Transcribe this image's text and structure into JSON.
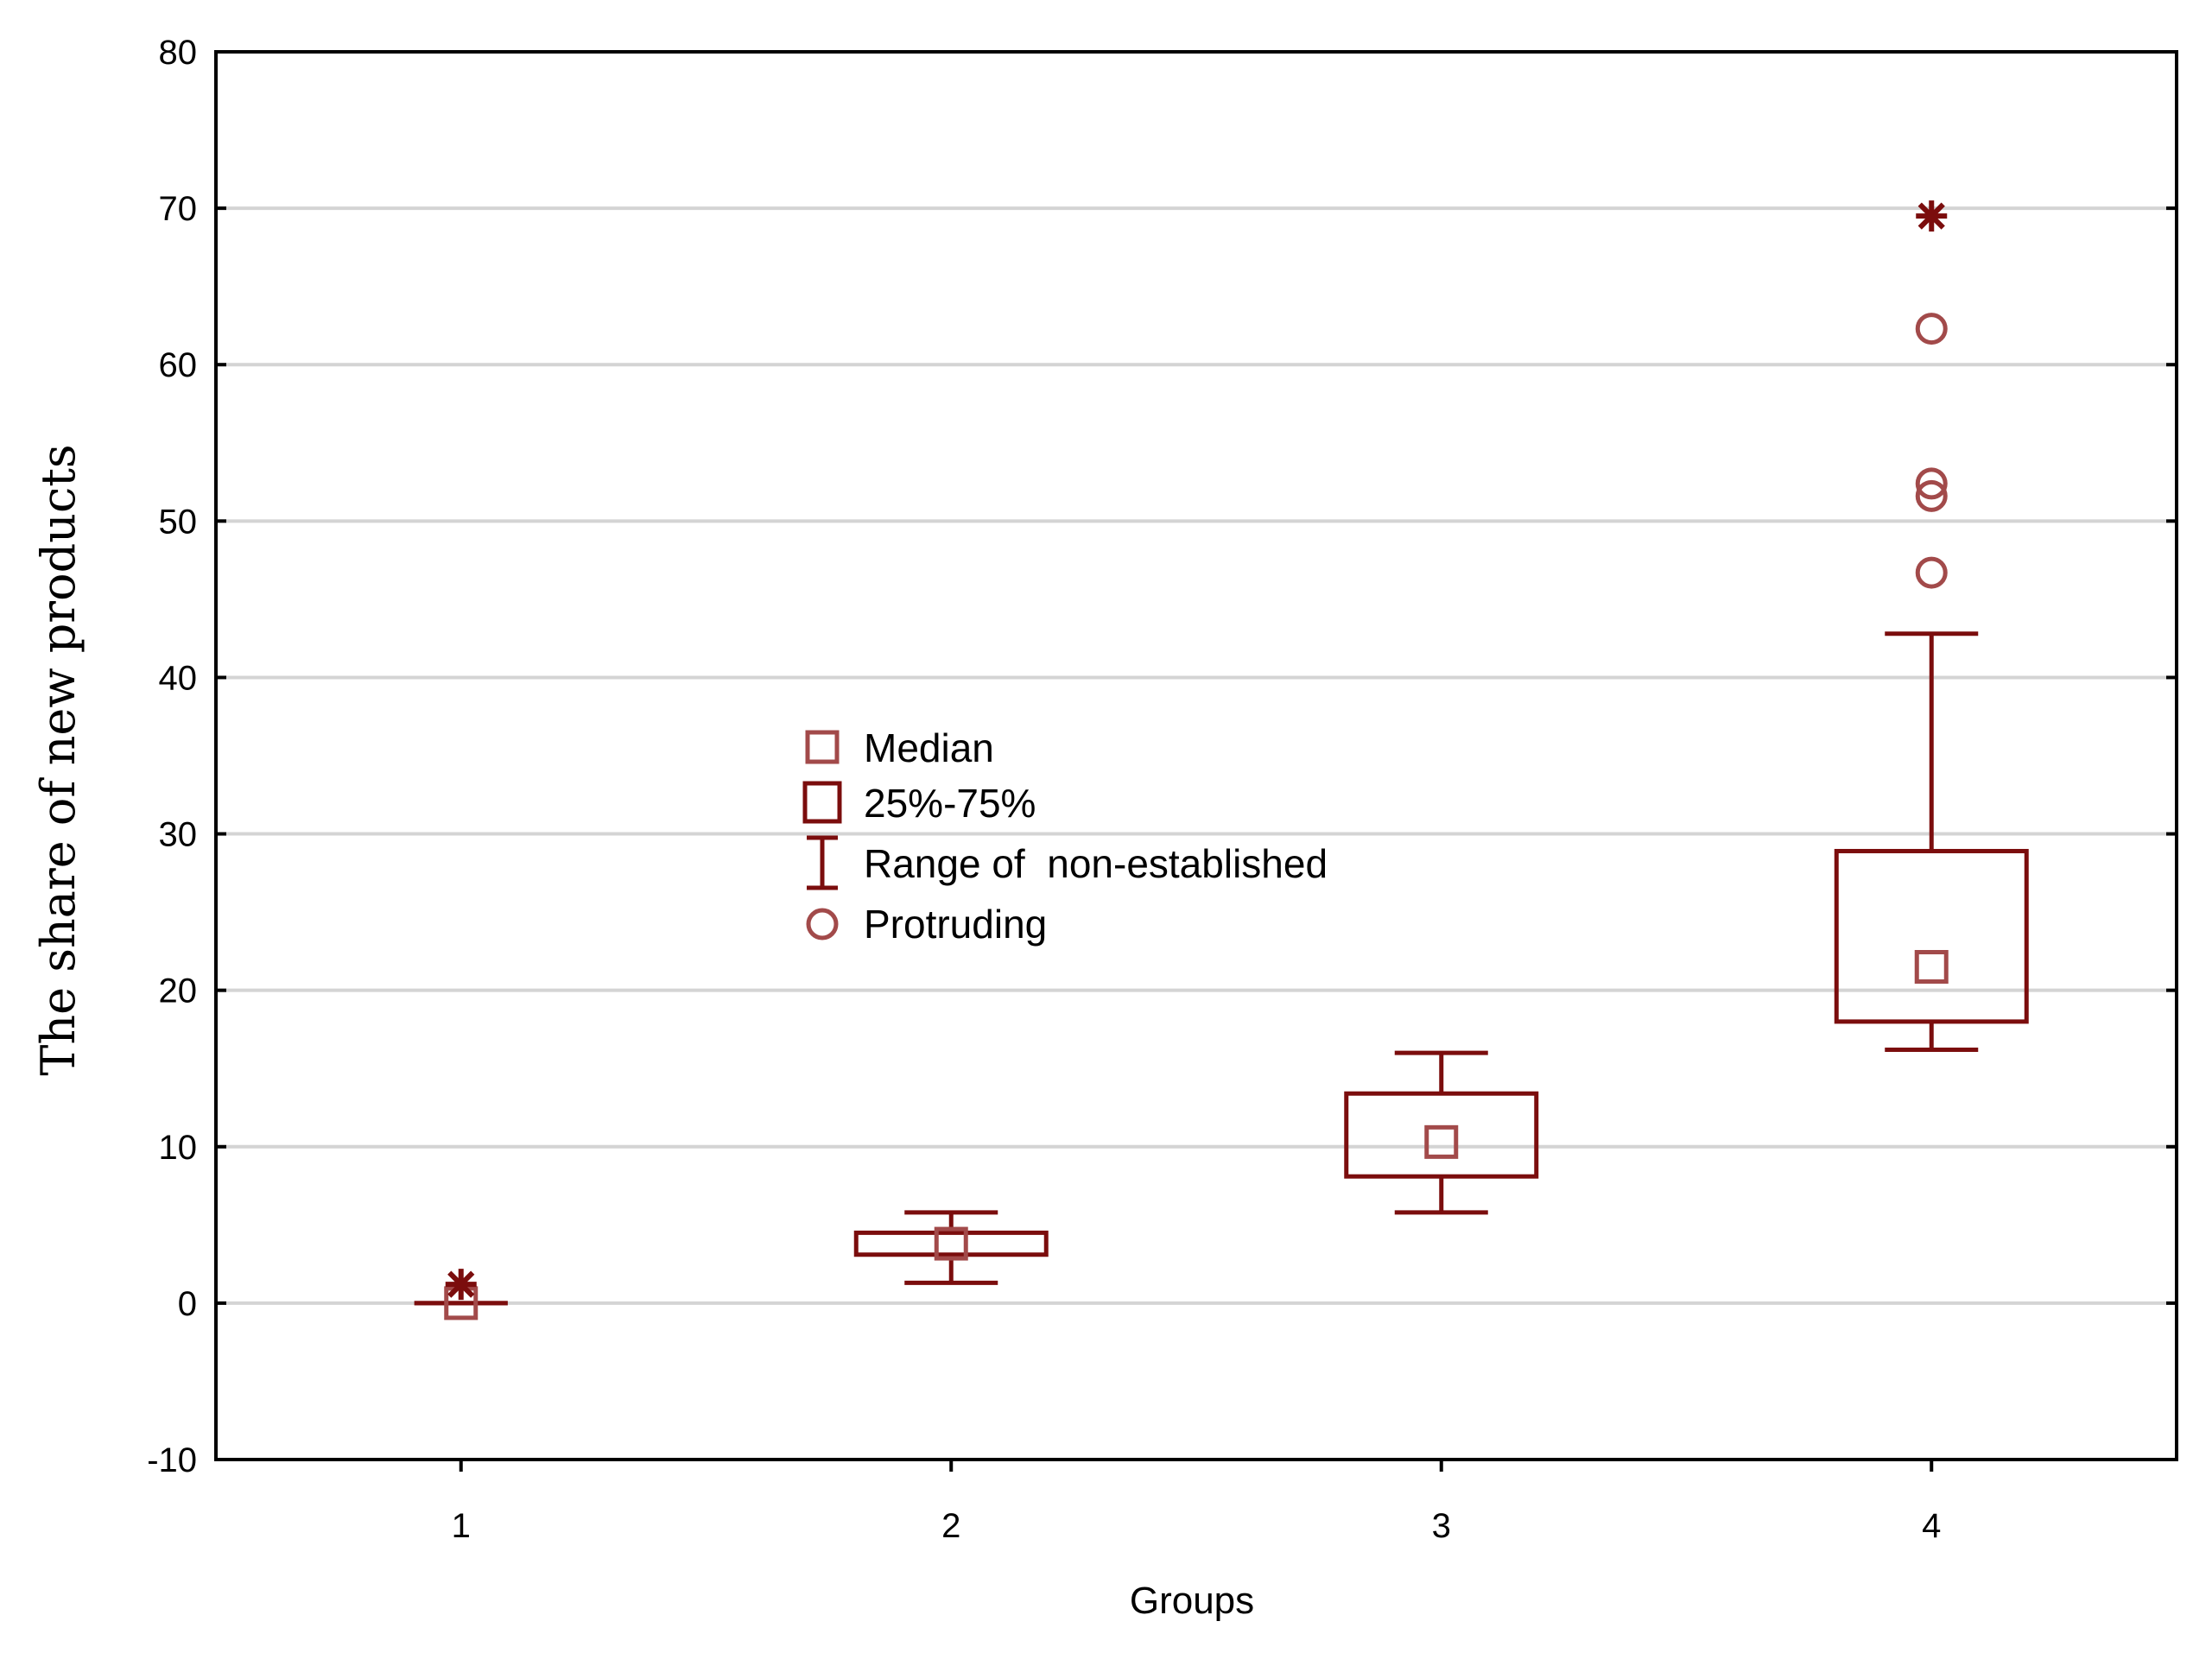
{
  "chart_data": {
    "type": "boxplot",
    "title": "",
    "xlabel": "Groups",
    "ylabel": "The share of new products",
    "ylim": [
      -10,
      80
    ],
    "yticks": [
      -10,
      0,
      10,
      20,
      30,
      40,
      50,
      60,
      70,
      80
    ],
    "grid": true,
    "categories": [
      "1",
      "2",
      "3",
      "4"
    ],
    "series_color": "#7b0d0d",
    "median_color": "#a24a4a",
    "gridline_color": "#d4d4d4",
    "groups": [
      {
        "label": "1",
        "median": 0,
        "q1": 0,
        "q3": 0,
        "whisker_low": 0,
        "whisker_high": 0,
        "outliers": [],
        "extremes": [
          1.2
        ]
      },
      {
        "label": "2",
        "median": 3.8,
        "q1": 3.1,
        "q3": 4.5,
        "whisker_low": 1.3,
        "whisker_high": 5.8,
        "outliers": [],
        "extremes": []
      },
      {
        "label": "3",
        "median": 10.3,
        "q1": 8.1,
        "q3": 13.4,
        "whisker_low": 5.8,
        "whisker_high": 16.0,
        "outliers": [],
        "extremes": []
      },
      {
        "label": "4",
        "median": 21.5,
        "q1": 18.0,
        "q3": 28.9,
        "whisker_low": 16.2,
        "whisker_high": 42.8,
        "outliers": [
          46.7,
          51.6,
          52.4,
          62.3
        ],
        "extremes": [
          69.5
        ]
      }
    ],
    "legend": {
      "placement": "center-left",
      "items": [
        {
          "symbol": "median",
          "label": "Median"
        },
        {
          "symbol": "box",
          "label": "25%-75%"
        },
        {
          "symbol": "whisker",
          "label": "Range of  non-established"
        },
        {
          "symbol": "outlier",
          "label": "Protruding"
        }
      ]
    }
  }
}
